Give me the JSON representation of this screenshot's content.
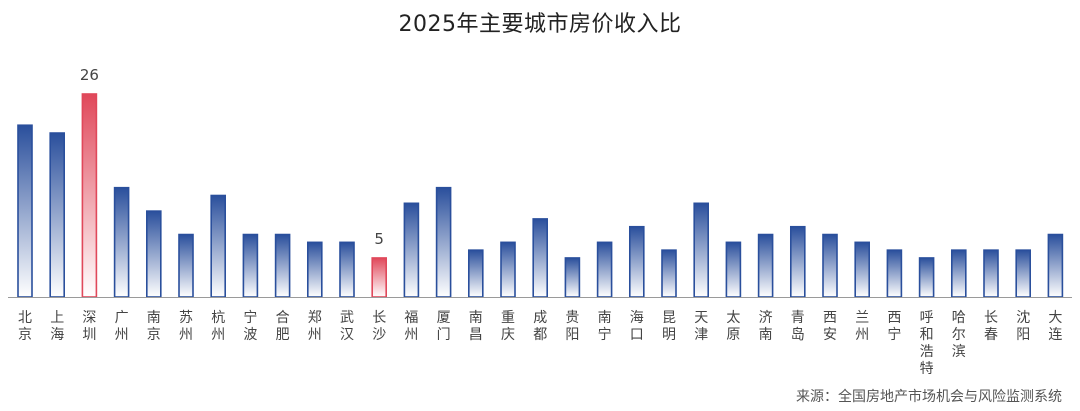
{
  "chart_data": {
    "type": "bar",
    "title": "2025年主要城市房价收入比",
    "categories": [
      "北京",
      "上海",
      "深圳",
      "广州",
      "南京",
      "苏州",
      "杭州",
      "宁波",
      "合肥",
      "郑州",
      "武汉",
      "长沙",
      "福州",
      "厦门",
      "南昌",
      "重庆",
      "成都",
      "贵阳",
      "南宁",
      "海口",
      "昆明",
      "天津",
      "太原",
      "济南",
      "青岛",
      "西安",
      "兰州",
      "西宁",
      "呼和浩特",
      "哈尔滨",
      "长春",
      "沈阳",
      "大连"
    ],
    "values": [
      22,
      21,
      26,
      14,
      11,
      8,
      13,
      8,
      8,
      7,
      7,
      5,
      12,
      14,
      6,
      7,
      10,
      5,
      7,
      9,
      6,
      12,
      7,
      8,
      9,
      8,
      7,
      6,
      5,
      6,
      6,
      6,
      8
    ],
    "highlighted": [
      {
        "category": "深圳",
        "label": "26"
      },
      {
        "category": "长沙",
        "label": "5"
      }
    ],
    "ylim": [
      0,
      26
    ],
    "grid": false,
    "colors": {
      "normal_top": "#2a4f9c",
      "normal_bottom": "#ffffff",
      "highlight_top": "#e0485a",
      "highlight_bottom": "#ffffff",
      "axis": "#9a9a9a",
      "label": "#444444"
    }
  },
  "source": "来源：全国房地产市场机会与风险监测系统"
}
